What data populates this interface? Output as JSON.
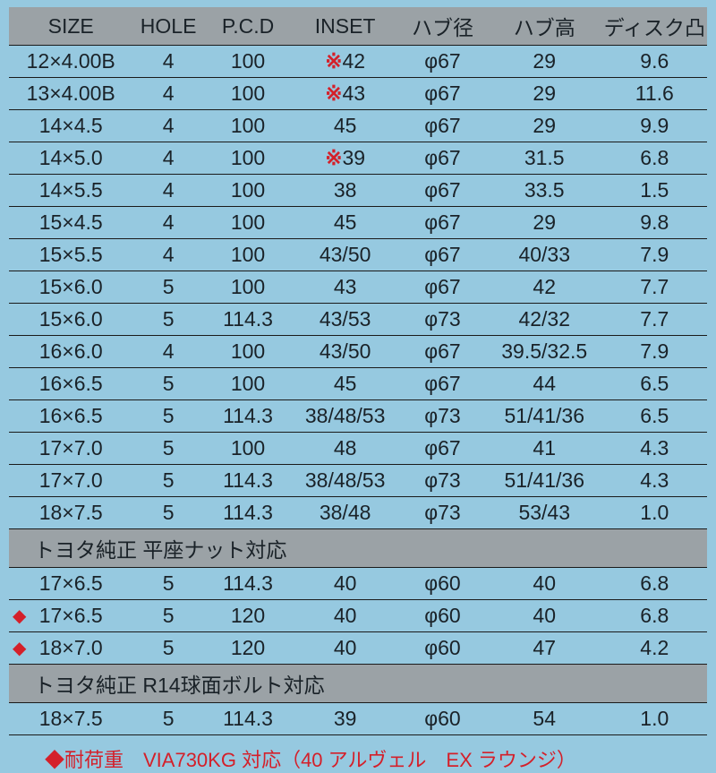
{
  "headers": [
    "SIZE",
    "HOLE",
    "P.C.D",
    "INSET",
    "ハブ径",
    "ハブ高",
    "ディスク凸"
  ],
  "section1_rows": [
    {
      "size": "12×4.00B",
      "hole": "4",
      "pcd": "100",
      "inset": "42",
      "inset_mark": true,
      "hub_d": "φ67",
      "hub_h": "29",
      "disk": "9.6",
      "diamond": false
    },
    {
      "size": "13×4.00B",
      "hole": "4",
      "pcd": "100",
      "inset": "43",
      "inset_mark": true,
      "hub_d": "φ67",
      "hub_h": "29",
      "disk": "11.6",
      "diamond": false
    },
    {
      "size": "14×4.5",
      "hole": "4",
      "pcd": "100",
      "inset": "45",
      "inset_mark": false,
      "hub_d": "φ67",
      "hub_h": "29",
      "disk": "9.9",
      "diamond": false
    },
    {
      "size": "14×5.0",
      "hole": "4",
      "pcd": "100",
      "inset": "39",
      "inset_mark": true,
      "hub_d": "φ67",
      "hub_h": "31.5",
      "disk": "6.8",
      "diamond": false
    },
    {
      "size": "14×5.5",
      "hole": "4",
      "pcd": "100",
      "inset": "38",
      "inset_mark": false,
      "hub_d": "φ67",
      "hub_h": "33.5",
      "disk": "1.5",
      "diamond": false
    },
    {
      "size": "15×4.5",
      "hole": "4",
      "pcd": "100",
      "inset": "45",
      "inset_mark": false,
      "hub_d": "φ67",
      "hub_h": "29",
      "disk": "9.8",
      "diamond": false
    },
    {
      "size": "15×5.5",
      "hole": "4",
      "pcd": "100",
      "inset": "43/50",
      "inset_mark": false,
      "hub_d": "φ67",
      "hub_h": "40/33",
      "disk": "7.9",
      "diamond": false
    },
    {
      "size": "15×6.0",
      "hole": "5",
      "pcd": "100",
      "inset": "43",
      "inset_mark": false,
      "hub_d": "φ67",
      "hub_h": "42",
      "disk": "7.7",
      "diamond": false
    },
    {
      "size": "15×6.0",
      "hole": "5",
      "pcd": "114.3",
      "inset": "43/53",
      "inset_mark": false,
      "hub_d": "φ73",
      "hub_h": "42/32",
      "disk": "7.7",
      "diamond": false
    },
    {
      "size": "16×6.0",
      "hole": "4",
      "pcd": "100",
      "inset": "43/50",
      "inset_mark": false,
      "hub_d": "φ67",
      "hub_h": "39.5/32.5",
      "disk": "7.9",
      "diamond": false
    },
    {
      "size": "16×6.5",
      "hole": "5",
      "pcd": "100",
      "inset": "45",
      "inset_mark": false,
      "hub_d": "φ67",
      "hub_h": "44",
      "disk": "6.5",
      "diamond": false
    },
    {
      "size": "16×6.5",
      "hole": "5",
      "pcd": "114.3",
      "inset": "38/48/53",
      "inset_mark": false,
      "hub_d": "φ73",
      "hub_h": "51/41/36",
      "disk": "6.5",
      "diamond": false
    },
    {
      "size": "17×7.0",
      "hole": "5",
      "pcd": "100",
      "inset": "48",
      "inset_mark": false,
      "hub_d": "φ67",
      "hub_h": "41",
      "disk": "4.3",
      "diamond": false
    },
    {
      "size": "17×7.0",
      "hole": "5",
      "pcd": "114.3",
      "inset": "38/48/53",
      "inset_mark": false,
      "hub_d": "φ73",
      "hub_h": "51/41/36",
      "disk": "4.3",
      "diamond": false
    },
    {
      "size": "18×7.5",
      "hole": "5",
      "pcd": "114.3",
      "inset": "38/48",
      "inset_mark": false,
      "hub_d": "φ73",
      "hub_h": "53/43",
      "disk": "1.0",
      "diamond": false
    }
  ],
  "section2_title": "トヨタ純正 平座ナット対応",
  "section2_rows": [
    {
      "size": "17×6.5",
      "hole": "5",
      "pcd": "114.3",
      "inset": "40",
      "inset_mark": false,
      "hub_d": "φ60",
      "hub_h": "40",
      "disk": "6.8",
      "diamond": false
    },
    {
      "size": "17×6.5",
      "hole": "5",
      "pcd": "120",
      "inset": "40",
      "inset_mark": false,
      "hub_d": "φ60",
      "hub_h": "40",
      "disk": "6.8",
      "diamond": true
    },
    {
      "size": "18×7.0",
      "hole": "5",
      "pcd": "120",
      "inset": "40",
      "inset_mark": false,
      "hub_d": "φ60",
      "hub_h": "47",
      "disk": "4.2",
      "diamond": true
    }
  ],
  "section3_title": "トヨタ純正 R14球面ボルト対応",
  "section3_rows": [
    {
      "size": "18×7.5",
      "hole": "5",
      "pcd": "114.3",
      "inset": "39",
      "inset_mark": false,
      "hub_d": "φ60",
      "hub_h": "54",
      "disk": "1.0",
      "diamond": false
    }
  ],
  "footnote": "◆耐荷重　VIA730KG 対応（40 アルヴェル　EX ラウンジ）",
  "colors": {
    "background": "#96c9e0",
    "header_bg": "#9ba2a6",
    "text": "#1a2228",
    "accent_red": "#d4202a",
    "rule": "#1a1a1a"
  }
}
